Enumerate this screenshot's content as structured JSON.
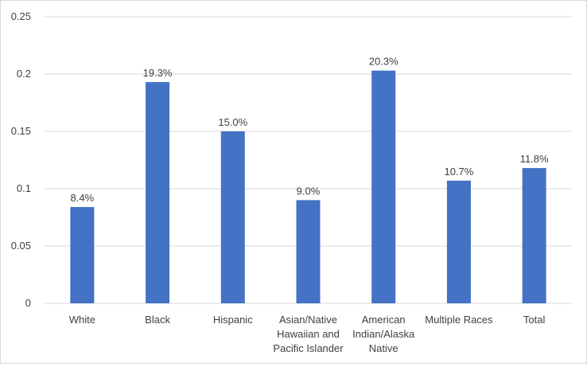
{
  "chart_data": {
    "type": "bar",
    "title": "",
    "xlabel": "",
    "ylabel": "",
    "categories": [
      [
        "White"
      ],
      [
        "Black"
      ],
      [
        "Hispanic"
      ],
      [
        "Asian/Native",
        "Hawaiian and",
        "Pacific Islander"
      ],
      [
        "American",
        "Indian/Alaska",
        "Native"
      ],
      [
        "Multiple Races"
      ],
      [
        "Total"
      ]
    ],
    "values": [
      0.084,
      0.193,
      0.15,
      0.09,
      0.203,
      0.107,
      0.118
    ],
    "data_labels": [
      "8.4%",
      "19.3%",
      "15.0%",
      "9.0%",
      "20.3%",
      "10.7%",
      "11.8%"
    ],
    "ylim": [
      0,
      0.25
    ],
    "yticks": [
      0,
      0.05,
      0.1,
      0.15,
      0.2,
      0.25
    ],
    "ytick_labels": [
      "0",
      "0.05",
      "0.1",
      "0.15",
      "0.2",
      "0.25"
    ],
    "grid": true,
    "legend": "none",
    "colors": {
      "bar": "#4472C4",
      "grid": "#d9d9d9",
      "text": "#404040",
      "border": "#d9d9d9"
    }
  }
}
